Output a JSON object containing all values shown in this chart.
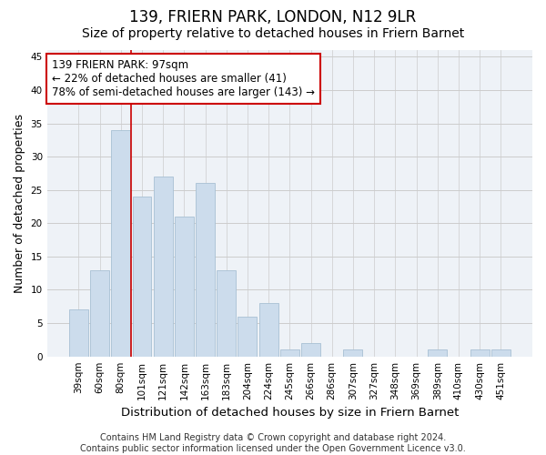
{
  "title": "139, FRIERN PARK, LONDON, N12 9LR",
  "subtitle": "Size of property relative to detached houses in Friern Barnet",
  "xlabel": "Distribution of detached houses by size in Friern Barnet",
  "ylabel": "Number of detached properties",
  "categories": [
    "39sqm",
    "60sqm",
    "80sqm",
    "101sqm",
    "121sqm",
    "142sqm",
    "163sqm",
    "183sqm",
    "204sqm",
    "224sqm",
    "245sqm",
    "266sqm",
    "286sqm",
    "307sqm",
    "327sqm",
    "348sqm",
    "369sqm",
    "389sqm",
    "410sqm",
    "430sqm",
    "451sqm"
  ],
  "values": [
    7,
    13,
    34,
    24,
    27,
    21,
    26,
    13,
    6,
    8,
    1,
    2,
    0,
    1,
    0,
    0,
    0,
    1,
    0,
    1,
    1
  ],
  "bar_color": "#ccdcec",
  "bar_edge_color": "#a8c0d4",
  "vline_x_index": 2,
  "vline_color": "#cc0000",
  "annotation_text": "139 FRIERN PARK: 97sqm\n← 22% of detached houses are smaller (41)\n78% of semi-detached houses are larger (143) →",
  "annotation_box_color": "#ffffff",
  "annotation_box_edge_color": "#cc0000",
  "ylim": [
    0,
    46
  ],
  "yticks": [
    0,
    5,
    10,
    15,
    20,
    25,
    30,
    35,
    40,
    45
  ],
  "grid_color": "#cccccc",
  "background_color": "#eef2f7",
  "footer_text": "Contains HM Land Registry data © Crown copyright and database right 2024.\nContains public sector information licensed under the Open Government Licence v3.0.",
  "title_fontsize": 12,
  "subtitle_fontsize": 10,
  "xlabel_fontsize": 9.5,
  "ylabel_fontsize": 9,
  "tick_fontsize": 7.5,
  "annotation_fontsize": 8.5,
  "footer_fontsize": 7
}
